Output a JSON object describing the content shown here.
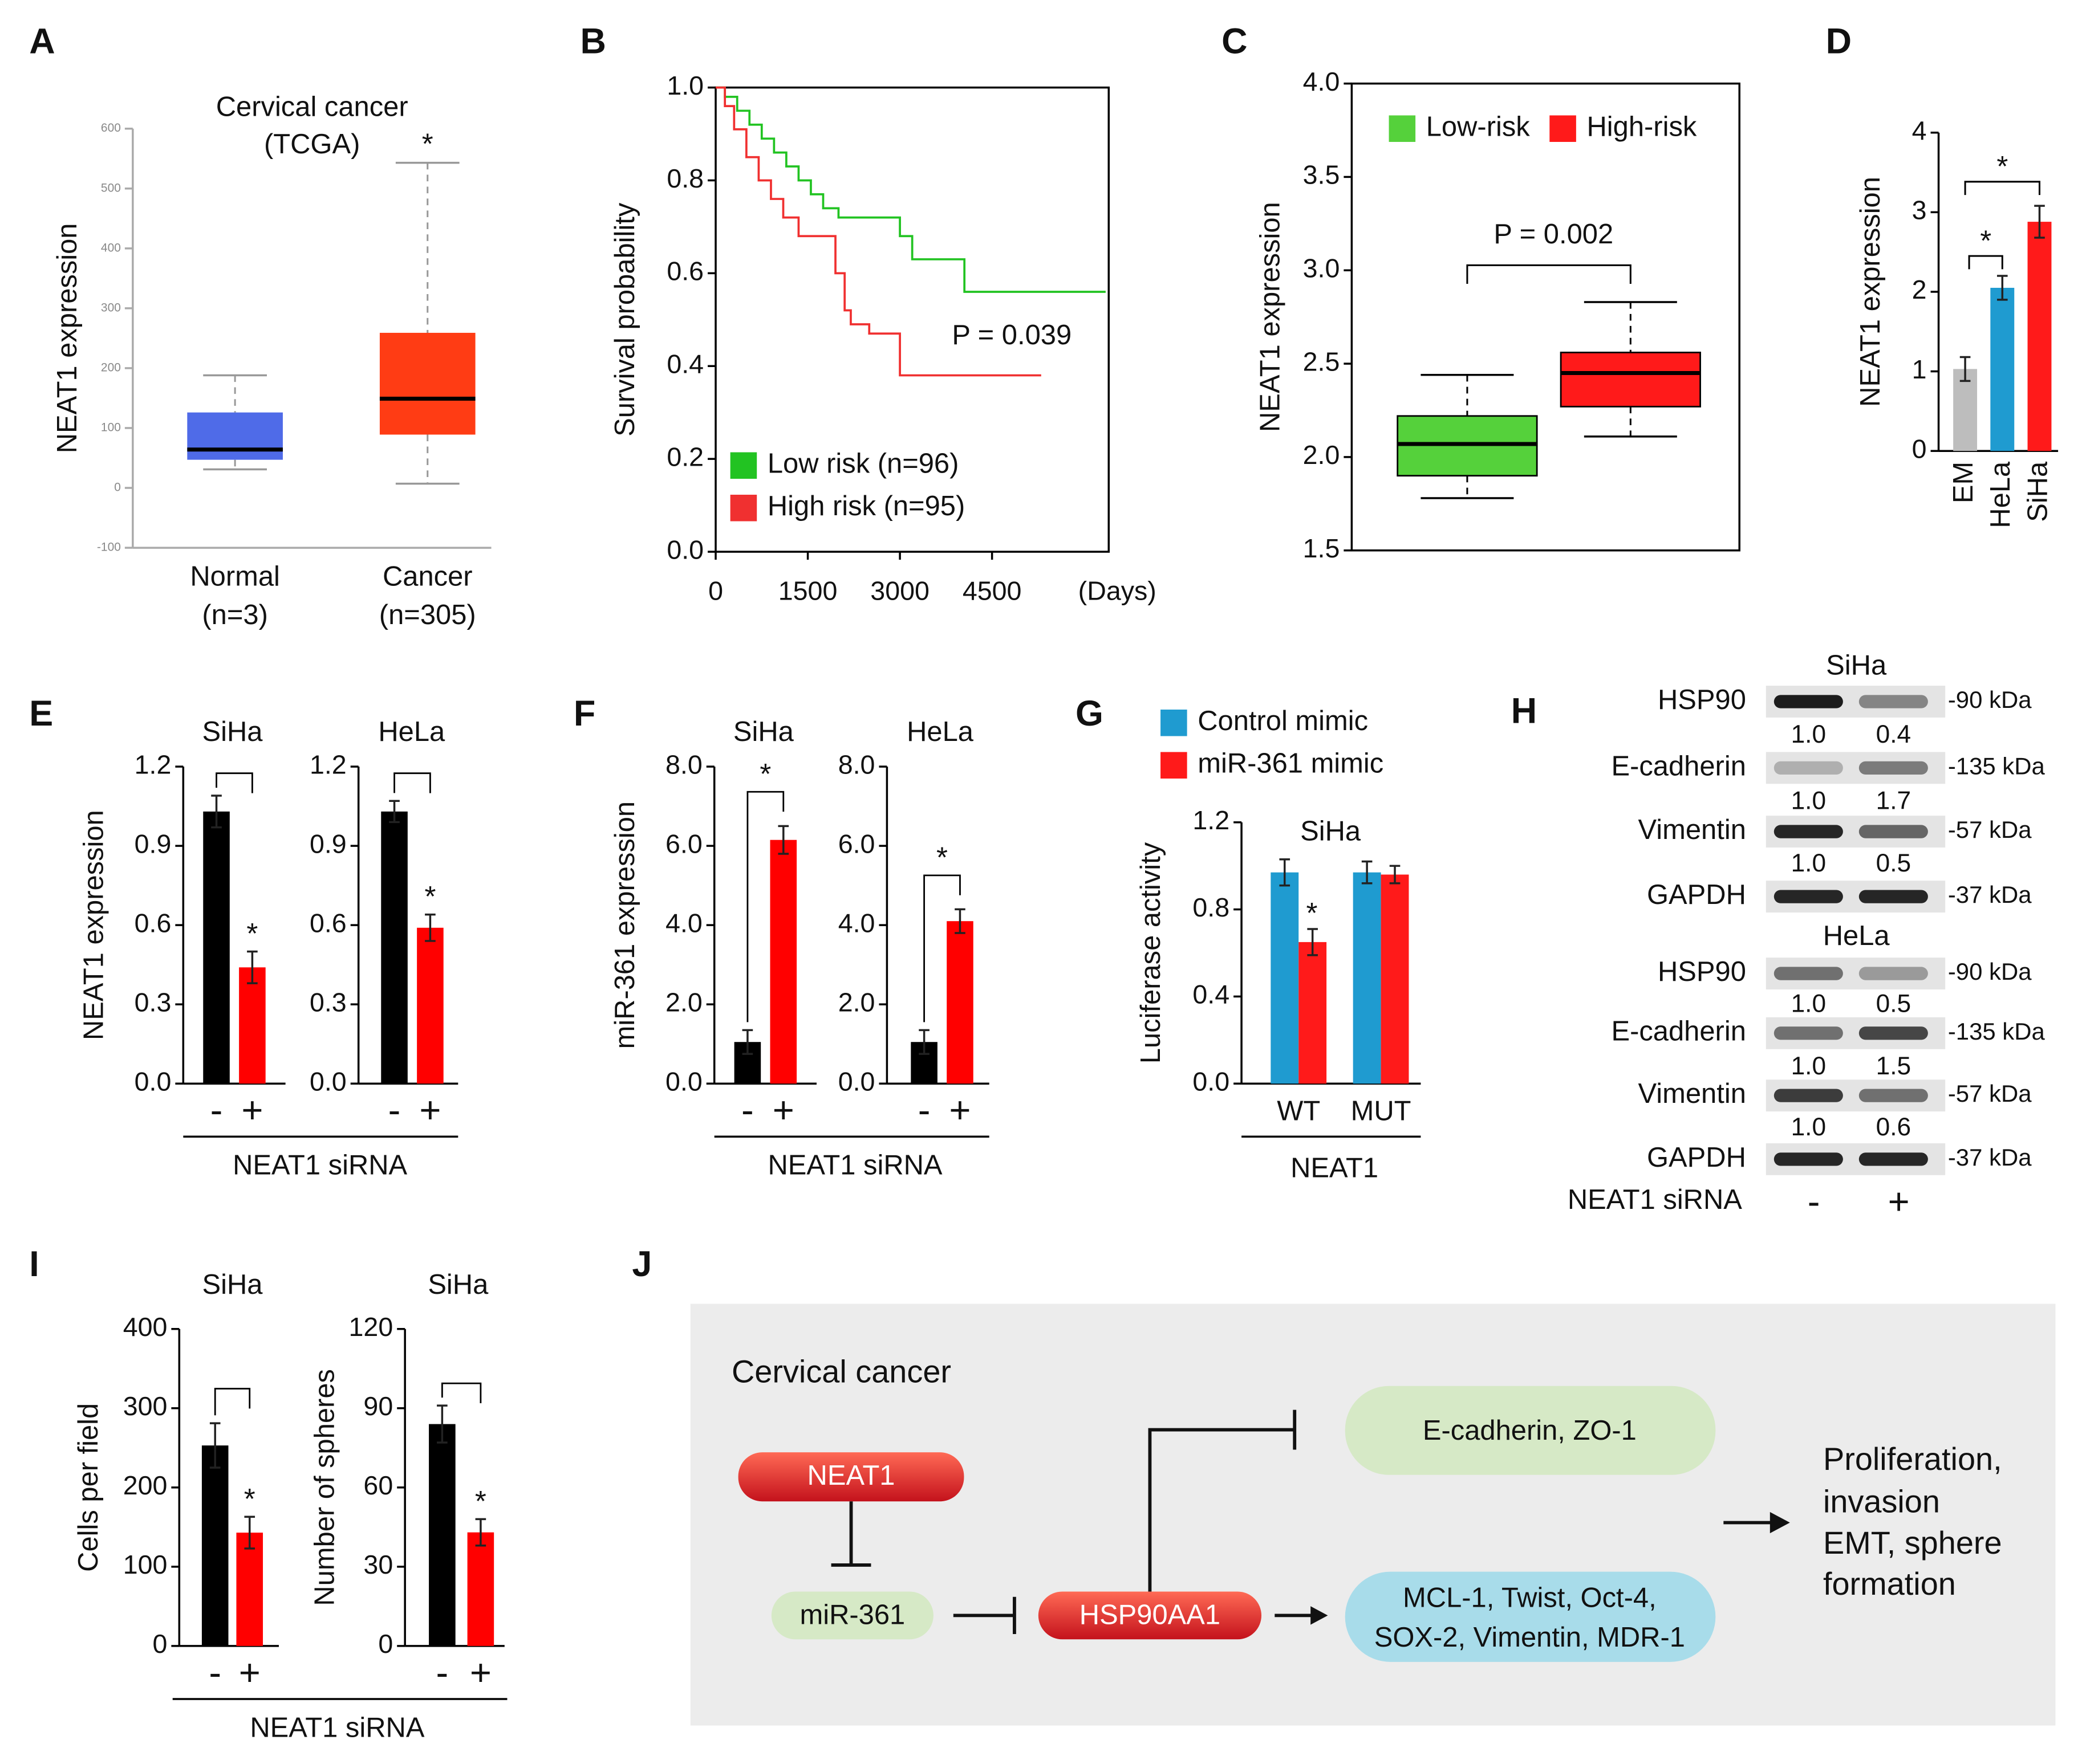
{
  "chart_data": [
    {
      "panel": "A",
      "type": "box",
      "title": "Cervical cancer",
      "subtitle": "(TCGA)",
      "ylabel": "NEAT1 expression",
      "categories": [
        "Normal",
        "Cancer"
      ],
      "category_notes": [
        "(n=3)",
        "(n=305)"
      ],
      "ylim": [
        -100,
        600
      ],
      "yticks": [
        -100,
        0,
        100,
        200,
        300,
        400,
        500,
        600
      ],
      "boxes": [
        {
          "min": 31,
          "q1": 47,
          "median": 64,
          "q3": 126,
          "max": 188,
          "color": "#4f6be8"
        },
        {
          "min": 7,
          "q1": 89,
          "median": 149,
          "q3": 259,
          "max": 543,
          "color": "#ff3c14"
        }
      ],
      "annotation": "*"
    },
    {
      "panel": "B",
      "type": "line",
      "ylabel": "Survival probability",
      "xlabel": "(Days)",
      "xlim": [
        0,
        6400
      ],
      "xticks": [
        0,
        1500,
        3000,
        4500
      ],
      "ylim": [
        0,
        1
      ],
      "yticks": [
        {
          "value": 0,
          "label": "0.0"
        },
        {
          "value": 0.2,
          "label": "0.2"
        },
        {
          "value": 0.4,
          "label": "0.4"
        },
        {
          "value": 0.6,
          "label": "0.6"
        },
        {
          "value": 0.8,
          "label": "0.8"
        },
        {
          "value": 1,
          "label": "1.0"
        }
      ],
      "series": [
        {
          "name": "Low risk (n=96)",
          "color": "#22c322",
          "x": [
            0,
            150,
            150,
            350,
            350,
            550,
            550,
            750,
            750,
            950,
            950,
            1150,
            1150,
            1350,
            1350,
            1550,
            1550,
            1750,
            1750,
            2000,
            2000,
            3000,
            3000,
            3200,
            3200,
            4050,
            4050,
            6350
          ],
          "values": [
            1.0,
            1.0,
            0.98,
            0.98,
            0.95,
            0.95,
            0.92,
            0.92,
            0.89,
            0.89,
            0.86,
            0.86,
            0.83,
            0.83,
            0.8,
            0.8,
            0.77,
            0.77,
            0.74,
            0.74,
            0.72,
            0.72,
            0.68,
            0.68,
            0.63,
            0.63,
            0.56,
            0.56
          ]
        },
        {
          "name": "High risk (n=95)",
          "color": "#f03030",
          "x": [
            0,
            150,
            150,
            300,
            300,
            500,
            500,
            700,
            700,
            900,
            900,
            1100,
            1100,
            1350,
            1350,
            1950,
            1950,
            2100,
            2100,
            2200,
            2200,
            2500,
            2500,
            3000,
            3000,
            5300
          ],
          "values": [
            1.0,
            1.0,
            0.96,
            0.96,
            0.91,
            0.91,
            0.85,
            0.85,
            0.8,
            0.8,
            0.76,
            0.76,
            0.72,
            0.72,
            0.68,
            0.68,
            0.6,
            0.6,
            0.52,
            0.52,
            0.49,
            0.49,
            0.47,
            0.47,
            0.38,
            0.38
          ]
        }
      ],
      "annotation": "P = 0.039",
      "legend": "lower left"
    },
    {
      "panel": "C",
      "type": "box",
      "ylabel": "NEAT1 expression",
      "ylim": [
        1.5,
        4
      ],
      "yticks": [
        1.5,
        {
          "value": 2,
          "label": "2.0"
        },
        2.5,
        {
          "value": 3,
          "label": "3.0"
        },
        3.5,
        {
          "value": 4,
          "label": "4.0"
        }
      ],
      "boxes": [
        {
          "name": "Low-risk",
          "min": 1.78,
          "q1": 1.9,
          "median": 2.07,
          "q3": 2.22,
          "max": 2.44,
          "color": "#55d13b"
        },
        {
          "name": "High-risk",
          "min": 2.11,
          "q1": 2.27,
          "median": 2.45,
          "q3": 2.56,
          "max": 2.83,
          "color": "#ff1a1a"
        }
      ],
      "annotation": "P = 0.002",
      "legend": "top"
    },
    {
      "panel": "D",
      "type": "bar",
      "ylabel": "NEAT1 expression",
      "categories": [
        "EM",
        "HeLa",
        "SiHa"
      ],
      "values": [
        1.03,
        2.05,
        2.88
      ],
      "errors": [
        0.15,
        0.15,
        0.2
      ],
      "colors": [
        "#bdbdbd",
        "#1f9bd0",
        "#ff1a1a"
      ],
      "ylim": [
        0,
        4
      ],
      "yticks": [
        0,
        1,
        2,
        3,
        4
      ],
      "annotations": [
        "*",
        "*"
      ]
    },
    {
      "panel": "E",
      "type": "bar",
      "title": "SiHa",
      "ylabel": "NEAT1 expression",
      "xlabel": "NEAT1 siRNA",
      "categories": [
        "-",
        "+"
      ],
      "values": [
        1.03,
        0.44
      ],
      "errors": [
        0.06,
        0.06
      ],
      "colors": [
        "#000000",
        "#ff0000"
      ],
      "ylim": [
        0,
        1.2
      ],
      "yticks": [
        {
          "value": 0,
          "label": "0.0"
        },
        0.3,
        0.6,
        0.9,
        1.2
      ],
      "annotation": "*"
    },
    {
      "type": "bar",
      "title": "HeLa",
      "categories": [
        "-",
        "+"
      ],
      "values": [
        1.03,
        0.59
      ],
      "errors": [
        0.04,
        0.05
      ],
      "colors": [
        "#000000",
        "#ff0000"
      ],
      "ylim": [
        0,
        1.2
      ],
      "yticks": [
        {
          "value": 0,
          "label": "0.0"
        },
        0.3,
        0.6,
        0.9,
        1.2
      ],
      "annotation": "*"
    },
    {
      "panel": "F",
      "type": "bar",
      "title": "SiHa",
      "ylabel": "miR-361 expression",
      "xlabel": "NEAT1 siRNA",
      "categories": [
        "-",
        "+"
      ],
      "values": [
        1.05,
        6.15
      ],
      "errors": [
        0.3,
        0.35
      ],
      "colors": [
        "#000000",
        "#ff0000"
      ],
      "ylim": [
        0,
        8
      ],
      "yticks": [
        {
          "value": 0,
          "label": "0.0"
        },
        {
          "value": 2,
          "label": "2.0"
        },
        {
          "value": 4,
          "label": "4.0"
        },
        {
          "value": 6,
          "label": "6.0"
        },
        {
          "value": 8,
          "label": "8.0"
        }
      ],
      "annotation": "*"
    },
    {
      "type": "bar",
      "title": "HeLa",
      "categories": [
        "-",
        "+"
      ],
      "values": [
        1.05,
        4.1
      ],
      "errors": [
        0.3,
        0.3
      ],
      "colors": [
        "#000000",
        "#ff0000"
      ],
      "ylim": [
        0,
        8
      ],
      "yticks": [
        {
          "value": 0,
          "label": "0.0"
        },
        {
          "value": 2,
          "label": "2.0"
        },
        {
          "value": 4,
          "label": "4.0"
        },
        {
          "value": 6,
          "label": "6.0"
        },
        {
          "value": 8,
          "label": "8.0"
        }
      ],
      "annotation": "*"
    },
    {
      "panel": "G",
      "type": "bar",
      "title": "SiHa",
      "ylabel": "Luciferase activity",
      "xlabel": "NEAT1",
      "categories": [
        "WT",
        "MUT"
      ],
      "series": [
        {
          "name": "Control mimic",
          "color": "#1f9bd0",
          "values": [
            0.97,
            0.97
          ],
          "errors": [
            0.06,
            0.05
          ]
        },
        {
          "name": "miR-361 mimic",
          "color": "#ff1a1a",
          "values": [
            0.65,
            0.96
          ],
          "errors": [
            0.06,
            0.04
          ]
        }
      ],
      "ylim": [
        0,
        1.2
      ],
      "yticks": [
        {
          "value": 0,
          "label": "0.0"
        },
        0.4,
        0.8,
        1.2
      ],
      "annotation": "*"
    },
    {
      "panel": "I",
      "type": "bar",
      "title": "SiHa",
      "ylabel": "Cells per field",
      "xlabel": "NEAT1 siRNA",
      "categories": [
        "-",
        "+"
      ],
      "values": [
        253,
        143
      ],
      "errors": [
        28,
        20
      ],
      "colors": [
        "#000000",
        "#ff0000"
      ],
      "ylim": [
        0,
        400
      ],
      "yticks": [
        0,
        100,
        200,
        300,
        400
      ],
      "annotation": "*"
    },
    {
      "type": "bar",
      "title": "SiHa",
      "ylabel": "Number of spheres",
      "categories": [
        "-",
        "+"
      ],
      "values": [
        84,
        43
      ],
      "errors": [
        7,
        5
      ],
      "colors": [
        "#000000",
        "#ff0000"
      ],
      "ylim": [
        0,
        120
      ],
      "yticks": [
        0,
        30,
        60,
        90,
        120
      ],
      "annotation": "*"
    }
  ],
  "blot": {
    "panel": "H",
    "groups": [
      {
        "title": "SiHa",
        "rows": [
          {
            "protein": "HSP90",
            "size": "-90 kDa",
            "ratios": [
              "1.0",
              "0.4"
            ]
          },
          {
            "protein": "E-cadherin",
            "size": "-135 kDa",
            "ratios": [
              "1.0",
              "1.7"
            ]
          },
          {
            "protein": "Vimentin",
            "size": "-57 kDa",
            "ratios": [
              "1.0",
              "0.5"
            ]
          },
          {
            "protein": "GAPDH",
            "size": "-37 kDa"
          }
        ]
      },
      {
        "title": "HeLa",
        "rows": [
          {
            "protein": "HSP90",
            "size": "-90 kDa",
            "ratios": [
              "1.0",
              "0.5"
            ]
          },
          {
            "protein": "E-cadherin",
            "size": "-135 kDa",
            "ratios": [
              "1.0",
              "1.5"
            ]
          },
          {
            "protein": "Vimentin",
            "size": "-57 kDa",
            "ratios": [
              "1.0",
              "0.6"
            ]
          },
          {
            "protein": "GAPDH",
            "size": "-37 kDa"
          }
        ]
      }
    ],
    "treatment": "NEAT1 siRNA",
    "lanes": [
      "-",
      "+"
    ]
  },
  "diagram": {
    "panel": "J",
    "title": "Cervical cancer",
    "nodes": [
      [
        "NEAT1"
      ],
      [
        "miR-361"
      ],
      [
        "HSP90AA1"
      ],
      [
        "E-cadherin, ZO-1"
      ],
      [
        "MCL-1, Twist, Oct-4,",
        "SOX-2, Vimentin, MDR-1"
      ]
    ],
    "outcome": [
      "Proliferation,",
      "invasion",
      "EMT, sphere",
      "formation"
    ]
  }
}
